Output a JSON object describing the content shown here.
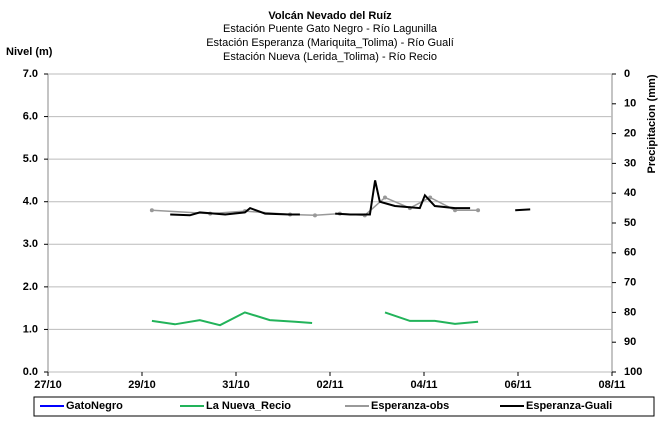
{
  "chart_data": {
    "type": "line",
    "title": "Volcán Nevado del Ruíz",
    "subtitles": [
      "Estación Puente Gato Negro - Río Lagunilla",
      "Estación Esperanza (Mariquita_Tolima) - Río Gualí",
      "Estación Nueva (Lerida_Tolima) - Río Recio"
    ],
    "y_label": "Nivel (m)",
    "y2_label": "Precipitacion (mm)",
    "xlim": [
      0,
      12
    ],
    "xticks": [
      {
        "value": 0,
        "label": "27/10"
      },
      {
        "value": 2,
        "label": "29/10"
      },
      {
        "value": 4,
        "label": "31/10"
      },
      {
        "value": 6,
        "label": "02/11"
      },
      {
        "value": 8,
        "label": "04/11"
      },
      {
        "value": 10,
        "label": "06/11"
      },
      {
        "value": 12,
        "label": "08/11"
      }
    ],
    "ylim": [
      0,
      7
    ],
    "yticks": [
      {
        "value": 0,
        "label": "0.0"
      },
      {
        "value": 1,
        "label": "1.0"
      },
      {
        "value": 2,
        "label": "2.0"
      },
      {
        "value": 3,
        "label": "3.0"
      },
      {
        "value": 4,
        "label": "4.0"
      },
      {
        "value": 5,
        "label": "5.0"
      },
      {
        "value": 6,
        "label": "6.0"
      },
      {
        "value": 7,
        "label": "7.0"
      }
    ],
    "y2lim": [
      100,
      0
    ],
    "y2ticks": [
      0,
      10,
      20,
      30,
      40,
      50,
      60,
      70,
      80,
      90,
      100
    ],
    "grid": true,
    "series": [
      {
        "name": "GatoNegro",
        "color": "#0000ff",
        "x": [],
        "values": []
      },
      {
        "name": "La Nueva_Recio",
        "color": "#22b35a",
        "x": [
          2.21,
          2.7,
          3.23,
          3.66,
          4.19,
          4.72,
          5.26,
          5.62,
          null,
          7.17,
          7.7,
          8.23,
          8.66,
          9.15
        ],
        "values": [
          1.2,
          1.12,
          1.22,
          1.1,
          1.4,
          1.22,
          1.18,
          1.15,
          null,
          1.4,
          1.2,
          1.2,
          1.13,
          1.18
        ]
      },
      {
        "name": "Esperanza-obs",
        "color": "#999999",
        "markers": true,
        "x": [
          2.21,
          3.45,
          4.19,
          5.15,
          5.68,
          6.21,
          6.74,
          7.17,
          7.7,
          8.13,
          8.66,
          9.15
        ],
        "values": [
          3.8,
          3.72,
          3.78,
          3.7,
          3.68,
          3.72,
          3.68,
          4.1,
          3.85,
          4.1,
          3.8,
          3.8
        ]
      },
      {
        "name": "Esperanza-Guali",
        "color": "#000000",
        "x": [
          2.6,
          3.02,
          3.23,
          3.55,
          3.77,
          4.19,
          4.3,
          4.62,
          5.15,
          5.36,
          null,
          6.11,
          6.43,
          6.85,
          6.96,
          7.06,
          7.38,
          7.91,
          8.02,
          8.23,
          8.66,
          8.98,
          null,
          9.94,
          10.26
        ],
        "values": [
          3.7,
          3.68,
          3.75,
          3.72,
          3.7,
          3.75,
          3.85,
          3.72,
          3.7,
          3.7,
          null,
          3.72,
          3.7,
          3.7,
          4.5,
          4.0,
          3.9,
          3.85,
          4.15,
          3.9,
          3.85,
          3.85,
          null,
          3.8,
          3.82
        ]
      }
    ]
  }
}
